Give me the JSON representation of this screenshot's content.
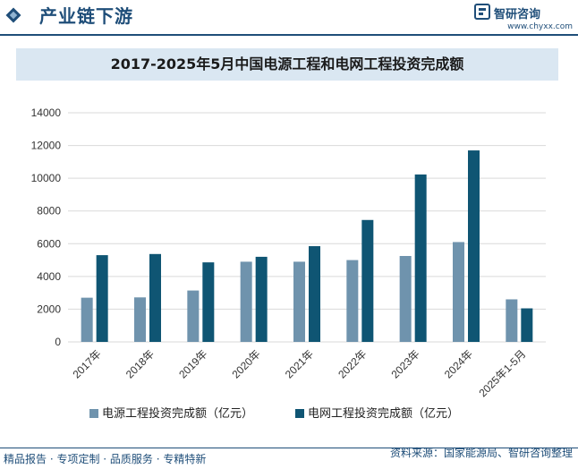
{
  "header": {
    "title": "产业链下游",
    "brand_name": "智研咨询",
    "brand_url": "www.chyxx.com"
  },
  "footer": {
    "left": "精品报告 · 专项定制 · 品质服务 · 专精特新",
    "right": "资料来源：国家能源局、智研咨询整理"
  },
  "colors": {
    "brand": "#1f4e79",
    "series1": "#6f93ad",
    "series2": "#0f5573"
  },
  "chart_data": {
    "type": "bar",
    "title": "2017-2025年5月中国电源工程和电网工程投资完成额",
    "categories": [
      "2017年",
      "2018年",
      "2019年",
      "2020年",
      "2021年",
      "2022年",
      "2023年",
      "2024年",
      "2025年1-5月"
    ],
    "series": [
      {
        "name": "电源工程投资完成额（亿元）",
        "values": [
          2700,
          2720,
          3140,
          4900,
          4900,
          5000,
          5250,
          6100,
          2600
        ]
      },
      {
        "name": "电网工程投资完成额（亿元）",
        "values": [
          5300,
          5370,
          4860,
          5200,
          5850,
          7450,
          10230,
          11700,
          2050
        ]
      }
    ],
    "ylim": [
      0,
      14000
    ],
    "yticks": [
      0,
      2000,
      4000,
      6000,
      8000,
      10000,
      12000,
      14000
    ],
    "xlabel": "",
    "ylabel": "",
    "grid": true,
    "legend": "bottom"
  }
}
